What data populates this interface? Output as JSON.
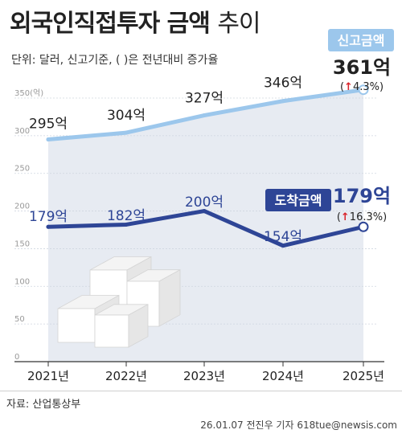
{
  "title": {
    "bold": "외국인직접투자 금액",
    "light": "추이"
  },
  "unit_note": "단위: 달러, 신고기준, ( )은 전년대비 증가율",
  "source": "자료: 산업통상부",
  "credit": "26.01.07 전진우 기자 618tue@newsis.com",
  "colors": {
    "reported": "#9cc7ec",
    "arrived": "#2e4596",
    "area": "#e3e8f0",
    "arrow": "#d9232a"
  },
  "chart_data": {
    "type": "line",
    "x": [
      "2021년",
      "2022년",
      "2023년",
      "2024년",
      "2025년"
    ],
    "y_ticks": [
      "0",
      "50",
      "100",
      "150",
      "200",
      "250",
      "300",
      "350(억)"
    ],
    "ylim": [
      0,
      350
    ],
    "series": [
      {
        "name": "신고금액",
        "values": [
          295,
          304,
          327,
          346,
          361
        ],
        "labels": [
          "295억",
          "304억",
          "327억",
          "346억",
          "361억"
        ],
        "last_growth": "4.3%)",
        "last_growth_open": "("
      },
      {
        "name": "도착금액",
        "values": [
          179,
          182,
          200,
          154,
          179
        ],
        "labels": [
          "179억",
          "182억",
          "200억",
          "154억",
          "179억"
        ],
        "last_growth": "16.3%)",
        "last_growth_open": "("
      }
    ]
  }
}
